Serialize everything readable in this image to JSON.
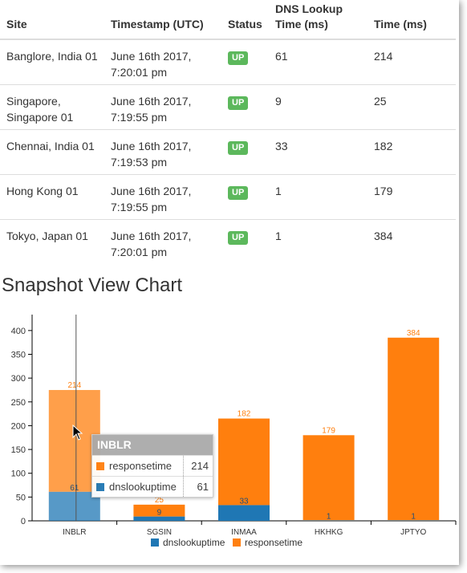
{
  "table": {
    "headers": [
      "Site",
      "Timestamp (UTC)",
      "Status",
      "DNS Lookup Time (ms)",
      "Time (ms)"
    ],
    "rows": [
      {
        "site": "Banglore, India 01",
        "timestamp": "June 16th 2017, 7:20:01 pm",
        "status": "UP",
        "dns": "61",
        "time": "214"
      },
      {
        "site": "Singapore, Singapore 01",
        "timestamp": "June 16th 2017, 7:19:55 pm",
        "status": "UP",
        "dns": "9",
        "time": "25"
      },
      {
        "site": "Chennai, India 01",
        "timestamp": "June 16th 2017, 7:19:53 pm",
        "status": "UP",
        "dns": "33",
        "time": "182"
      },
      {
        "site": "Hong Kong 01",
        "timestamp": "June 16th 2017, 7:19:55 pm",
        "status": "UP",
        "dns": "1",
        "time": "179"
      },
      {
        "site": "Tokyo, Japan 01",
        "timestamp": "June 16th 2017, 7:20:01 pm",
        "status": "UP",
        "dns": "1",
        "time": "384"
      }
    ]
  },
  "chart_section_title": "Snapshot View Chart",
  "chart_data": {
    "type": "bar",
    "stacked": true,
    "categories": [
      "INBLR",
      "SGSIN",
      "INMAA",
      "HKHKG",
      "JPTYO"
    ],
    "series": [
      {
        "name": "dnslookuptime",
        "values": [
          61,
          9,
          33,
          1,
          1
        ],
        "color": "#1f77b4"
      },
      {
        "name": "responsetime",
        "values": [
          214,
          25,
          182,
          179,
          384
        ],
        "color": "#ff7f0e"
      }
    ],
    "yticks": [
      0,
      50,
      100,
      150,
      200,
      250,
      300,
      350,
      400
    ],
    "ylim": [
      0,
      420
    ],
    "legend_position": "bottom",
    "highlighted_category": "INBLR"
  },
  "tooltip": {
    "title": "INBLR",
    "rows": [
      {
        "name": "responsetime",
        "value": "214"
      },
      {
        "name": "dnslookuptime",
        "value": "61"
      }
    ]
  },
  "colors": {
    "dns": "#1f77b4",
    "response": "#ff7f0e",
    "badge": "#5cb85c"
  }
}
